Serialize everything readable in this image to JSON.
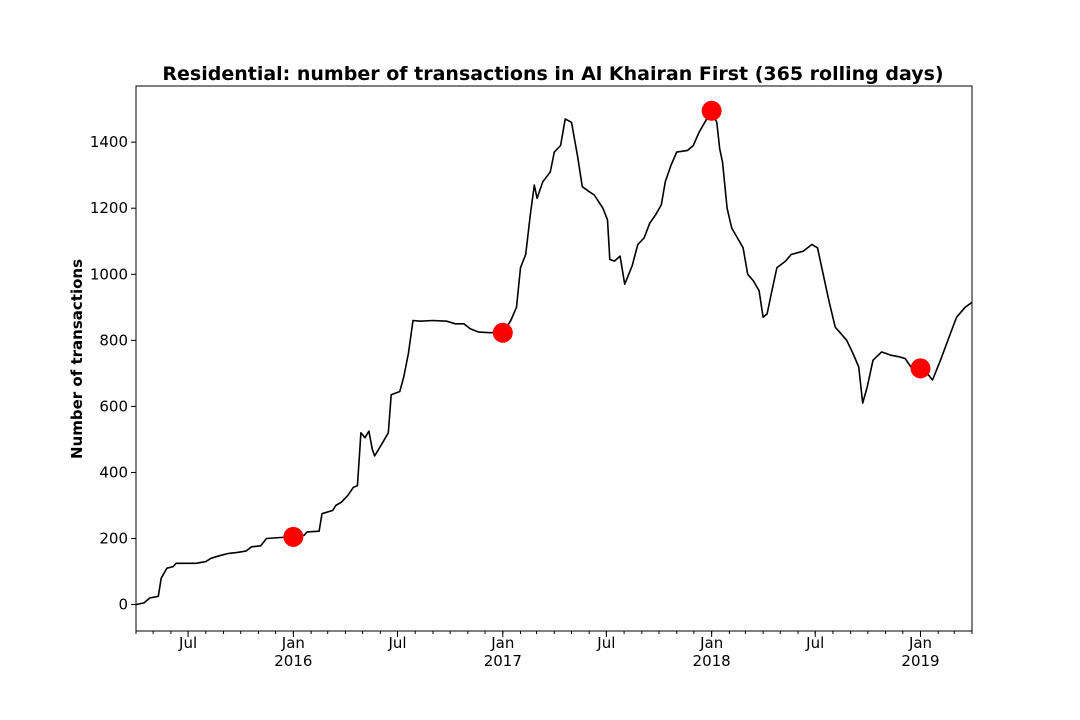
{
  "chart_data": {
    "type": "line",
    "title": "Residential: number of transactions in Al Khairan First (365 rolling days)",
    "xlabel": "",
    "ylabel": "Number of transactions",
    "xlim": [
      "2015-04-01",
      "2019-04-01"
    ],
    "ylim": [
      -80,
      1570
    ],
    "y_ticks": [
      0,
      200,
      400,
      600,
      800,
      1000,
      1200,
      1400
    ],
    "x_ticks": [
      {
        "date": "2015-07-01",
        "label": "Jul",
        "sublabel": ""
      },
      {
        "date": "2016-01-01",
        "label": "Jan",
        "sublabel": "2016"
      },
      {
        "date": "2016-07-01",
        "label": "Jul",
        "sublabel": ""
      },
      {
        "date": "2017-01-01",
        "label": "Jan",
        "sublabel": "2017"
      },
      {
        "date": "2017-07-01",
        "label": "Jul",
        "sublabel": ""
      },
      {
        "date": "2018-01-01",
        "label": "Jan",
        "sublabel": "2018"
      },
      {
        "date": "2018-07-01",
        "label": "Jul",
        "sublabel": ""
      },
      {
        "date": "2019-01-01",
        "label": "Jan",
        "sublabel": "2019"
      }
    ],
    "grid": false,
    "series": [
      {
        "color": "#000000",
        "points": [
          [
            "2015-04-01",
            0
          ],
          [
            "2015-04-15",
            5
          ],
          [
            "2015-04-25",
            20
          ],
          [
            "2015-05-10",
            25
          ],
          [
            "2015-05-15",
            80
          ],
          [
            "2015-05-25",
            110
          ],
          [
            "2015-06-05",
            115
          ],
          [
            "2015-06-10",
            125
          ],
          [
            "2015-07-15",
            125
          ],
          [
            "2015-08-01",
            130
          ],
          [
            "2015-08-10",
            140
          ],
          [
            "2015-08-25",
            148
          ],
          [
            "2015-09-10",
            155
          ],
          [
            "2015-09-25",
            158
          ],
          [
            "2015-10-10",
            162
          ],
          [
            "2015-10-20",
            175
          ],
          [
            "2015-11-05",
            178
          ],
          [
            "2015-11-15",
            200
          ],
          [
            "2015-12-10",
            203
          ],
          [
            "2016-01-01",
            205
          ],
          [
            "2016-01-20",
            210
          ],
          [
            "2016-01-25",
            220
          ],
          [
            "2016-02-15",
            222
          ],
          [
            "2016-02-20",
            275
          ],
          [
            "2016-03-10",
            285
          ],
          [
            "2016-03-15",
            300
          ],
          [
            "2016-03-25",
            310
          ],
          [
            "2016-04-05",
            330
          ],
          [
            "2016-04-15",
            355
          ],
          [
            "2016-04-22",
            360
          ],
          [
            "2016-04-25",
            440
          ],
          [
            "2016-04-28",
            520
          ],
          [
            "2016-05-05",
            505
          ],
          [
            "2016-05-12",
            525
          ],
          [
            "2016-05-18",
            470
          ],
          [
            "2016-05-22",
            450
          ],
          [
            "2016-06-05",
            490
          ],
          [
            "2016-06-15",
            520
          ],
          [
            "2016-06-20",
            635
          ],
          [
            "2016-07-05",
            645
          ],
          [
            "2016-07-12",
            690
          ],
          [
            "2016-07-20",
            760
          ],
          [
            "2016-07-28",
            860
          ],
          [
            "2016-08-10",
            858
          ],
          [
            "2016-09-01",
            860
          ],
          [
            "2016-09-25",
            858
          ],
          [
            "2016-10-10",
            850
          ],
          [
            "2016-10-25",
            850
          ],
          [
            "2016-11-05",
            835
          ],
          [
            "2016-11-20",
            825
          ],
          [
            "2016-12-10",
            823
          ],
          [
            "2017-01-01",
            823
          ],
          [
            "2017-01-15",
            860
          ],
          [
            "2017-01-25",
            900
          ],
          [
            "2017-02-01",
            1020
          ],
          [
            "2017-02-10",
            1060
          ],
          [
            "2017-02-18",
            1180
          ],
          [
            "2017-02-25",
            1270
          ],
          [
            "2017-03-02",
            1230
          ],
          [
            "2017-03-12",
            1280
          ],
          [
            "2017-03-25",
            1310
          ],
          [
            "2017-04-01",
            1370
          ],
          [
            "2017-04-12",
            1390
          ],
          [
            "2017-04-20",
            1470
          ],
          [
            "2017-05-01",
            1460
          ],
          [
            "2017-05-12",
            1355
          ],
          [
            "2017-05-20",
            1265
          ],
          [
            "2017-06-01",
            1250
          ],
          [
            "2017-06-10",
            1240
          ],
          [
            "2017-06-25",
            1200
          ],
          [
            "2017-07-03",
            1165
          ],
          [
            "2017-07-07",
            1045
          ],
          [
            "2017-07-15",
            1040
          ],
          [
            "2017-07-25",
            1055
          ],
          [
            "2017-08-02",
            970
          ],
          [
            "2017-08-15",
            1025
          ],
          [
            "2017-08-25",
            1090
          ],
          [
            "2017-09-05",
            1110
          ],
          [
            "2017-09-15",
            1155
          ],
          [
            "2017-09-25",
            1180
          ],
          [
            "2017-10-05",
            1210
          ],
          [
            "2017-10-12",
            1280
          ],
          [
            "2017-10-22",
            1330
          ],
          [
            "2017-11-01",
            1370
          ],
          [
            "2017-11-20",
            1375
          ],
          [
            "2017-11-30",
            1390
          ],
          [
            "2017-12-10",
            1430
          ],
          [
            "2017-12-20",
            1460
          ],
          [
            "2018-01-01",
            1495
          ],
          [
            "2018-01-10",
            1460
          ],
          [
            "2018-01-15",
            1380
          ],
          [
            "2018-01-20",
            1340
          ],
          [
            "2018-01-28",
            1200
          ],
          [
            "2018-02-05",
            1140
          ],
          [
            "2018-02-15",
            1110
          ],
          [
            "2018-02-25",
            1080
          ],
          [
            "2018-03-05",
            1000
          ],
          [
            "2018-03-15",
            980
          ],
          [
            "2018-03-25",
            950
          ],
          [
            "2018-04-01",
            870
          ],
          [
            "2018-04-08",
            880
          ],
          [
            "2018-04-15",
            940
          ],
          [
            "2018-04-25",
            1020
          ],
          [
            "2018-05-10",
            1040
          ],
          [
            "2018-05-20",
            1060
          ],
          [
            "2018-06-10",
            1070
          ],
          [
            "2018-06-25",
            1090
          ],
          [
            "2018-07-05",
            1080
          ],
          [
            "2018-07-15",
            1000
          ],
          [
            "2018-07-25",
            920
          ],
          [
            "2018-08-05",
            840
          ],
          [
            "2018-08-15",
            820
          ],
          [
            "2018-08-25",
            800
          ],
          [
            "2018-09-05",
            760
          ],
          [
            "2018-09-15",
            720
          ],
          [
            "2018-09-22",
            610
          ],
          [
            "2018-09-30",
            660
          ],
          [
            "2018-10-10",
            740
          ],
          [
            "2018-10-25",
            765
          ],
          [
            "2018-11-10",
            755
          ],
          [
            "2018-11-25",
            750
          ],
          [
            "2018-12-05",
            745
          ],
          [
            "2018-12-15",
            720
          ],
          [
            "2019-01-01",
            715
          ],
          [
            "2019-01-15",
            695
          ],
          [
            "2019-01-22",
            680
          ],
          [
            "2019-02-05",
            740
          ],
          [
            "2019-02-20",
            810
          ],
          [
            "2019-03-05",
            870
          ],
          [
            "2019-03-20",
            900
          ],
          [
            "2019-04-01",
            915
          ]
        ]
      }
    ],
    "markers": {
      "color": "#ff0000",
      "points": [
        [
          "2016-01-01",
          205
        ],
        [
          "2017-01-01",
          823
        ],
        [
          "2018-01-01",
          1495
        ],
        [
          "2019-01-01",
          715
        ]
      ]
    }
  }
}
